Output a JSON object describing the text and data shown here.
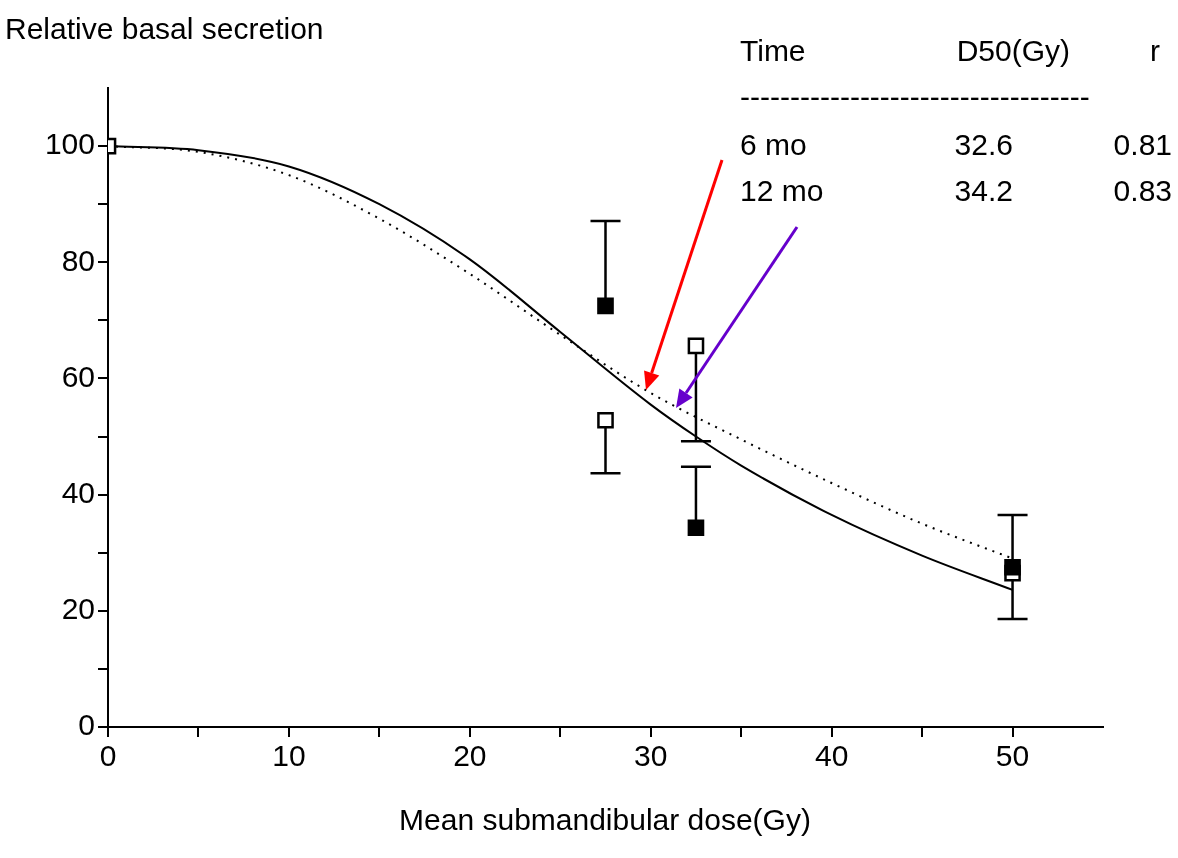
{
  "chart_data": {
    "type": "scatter",
    "ylabel": "Relative basal secretion",
    "xlabel": "Mean submandibular dose(Gy)",
    "annotations": [
      "Time",
      "D50(Gy)",
      "r",
      "-----------------------------------",
      "6 mo",
      "32.6",
      "0.81",
      "12 mo",
      "34.2",
      "0.83"
    ],
    "xlim": [
      0,
      55
    ],
    "xticks": [
      0,
      {
        "value": 5,
        "label": null
      },
      10,
      {
        "value": 15,
        "label": null
      },
      20,
      {
        "value": 25,
        "label": null
      },
      30,
      {
        "value": 35,
        "label": null
      },
      40,
      {
        "value": 45,
        "label": null
      },
      50
    ],
    "ylim": [
      0,
      110
    ],
    "yticks": [
      0,
      {
        "value": 10,
        "label": null
      },
      20,
      {
        "value": 30,
        "label": null
      },
      40,
      {
        "value": 50,
        "label": null
      },
      60,
      {
        "value": 70,
        "label": null
      },
      80,
      {
        "value": 90,
        "label": null
      },
      100
    ],
    "grid": false,
    "legend": false,
    "series": [
      {
        "type": "line",
        "color": "#000000",
        "line_style": "solid",
        "marker": "none",
        "x": [
          0,
          5,
          10,
          15,
          20,
          25,
          30,
          32.5,
          35,
          40,
          45,
          50
        ],
        "values": [
          100,
          99.3,
          96.5,
          90,
          80.5,
          68,
          55.5,
          50,
          45,
          36.5,
          29.5,
          23.6
        ]
      },
      {
        "type": "line",
        "color": "#000000",
        "line_style": "dotted",
        "marker": "none",
        "x": [
          0,
          5,
          10,
          15,
          20,
          25,
          30,
          35,
          40,
          45,
          50
        ],
        "values": [
          100,
          99,
          95,
          87.5,
          78,
          67.5,
          57.5,
          49.5,
          42,
          35,
          29
        ]
      },
      {
        "color": "#000000",
        "marker": "square",
        "x": [
          27.5,
          32.5,
          50
        ],
        "values": [
          72.5,
          34.3,
          27.5
        ],
        "errors": [
          [
            72.5,
            87.1
          ],
          [
            34.3,
            44.8
          ],
          [
            27.5,
            36.5
          ]
        ]
      },
      {
        "color": "#ffffff",
        "marker": "square",
        "x": [
          0,
          27.5,
          32.5,
          50
        ],
        "values": [
          100,
          52.8,
          65.6,
          26.5
        ],
        "errors": [
          null,
          [
            43.7,
            52.8
          ],
          [
            49.2,
            65.6
          ],
          [
            18.6,
            26.5
          ]
        ]
      }
    ]
  }
}
